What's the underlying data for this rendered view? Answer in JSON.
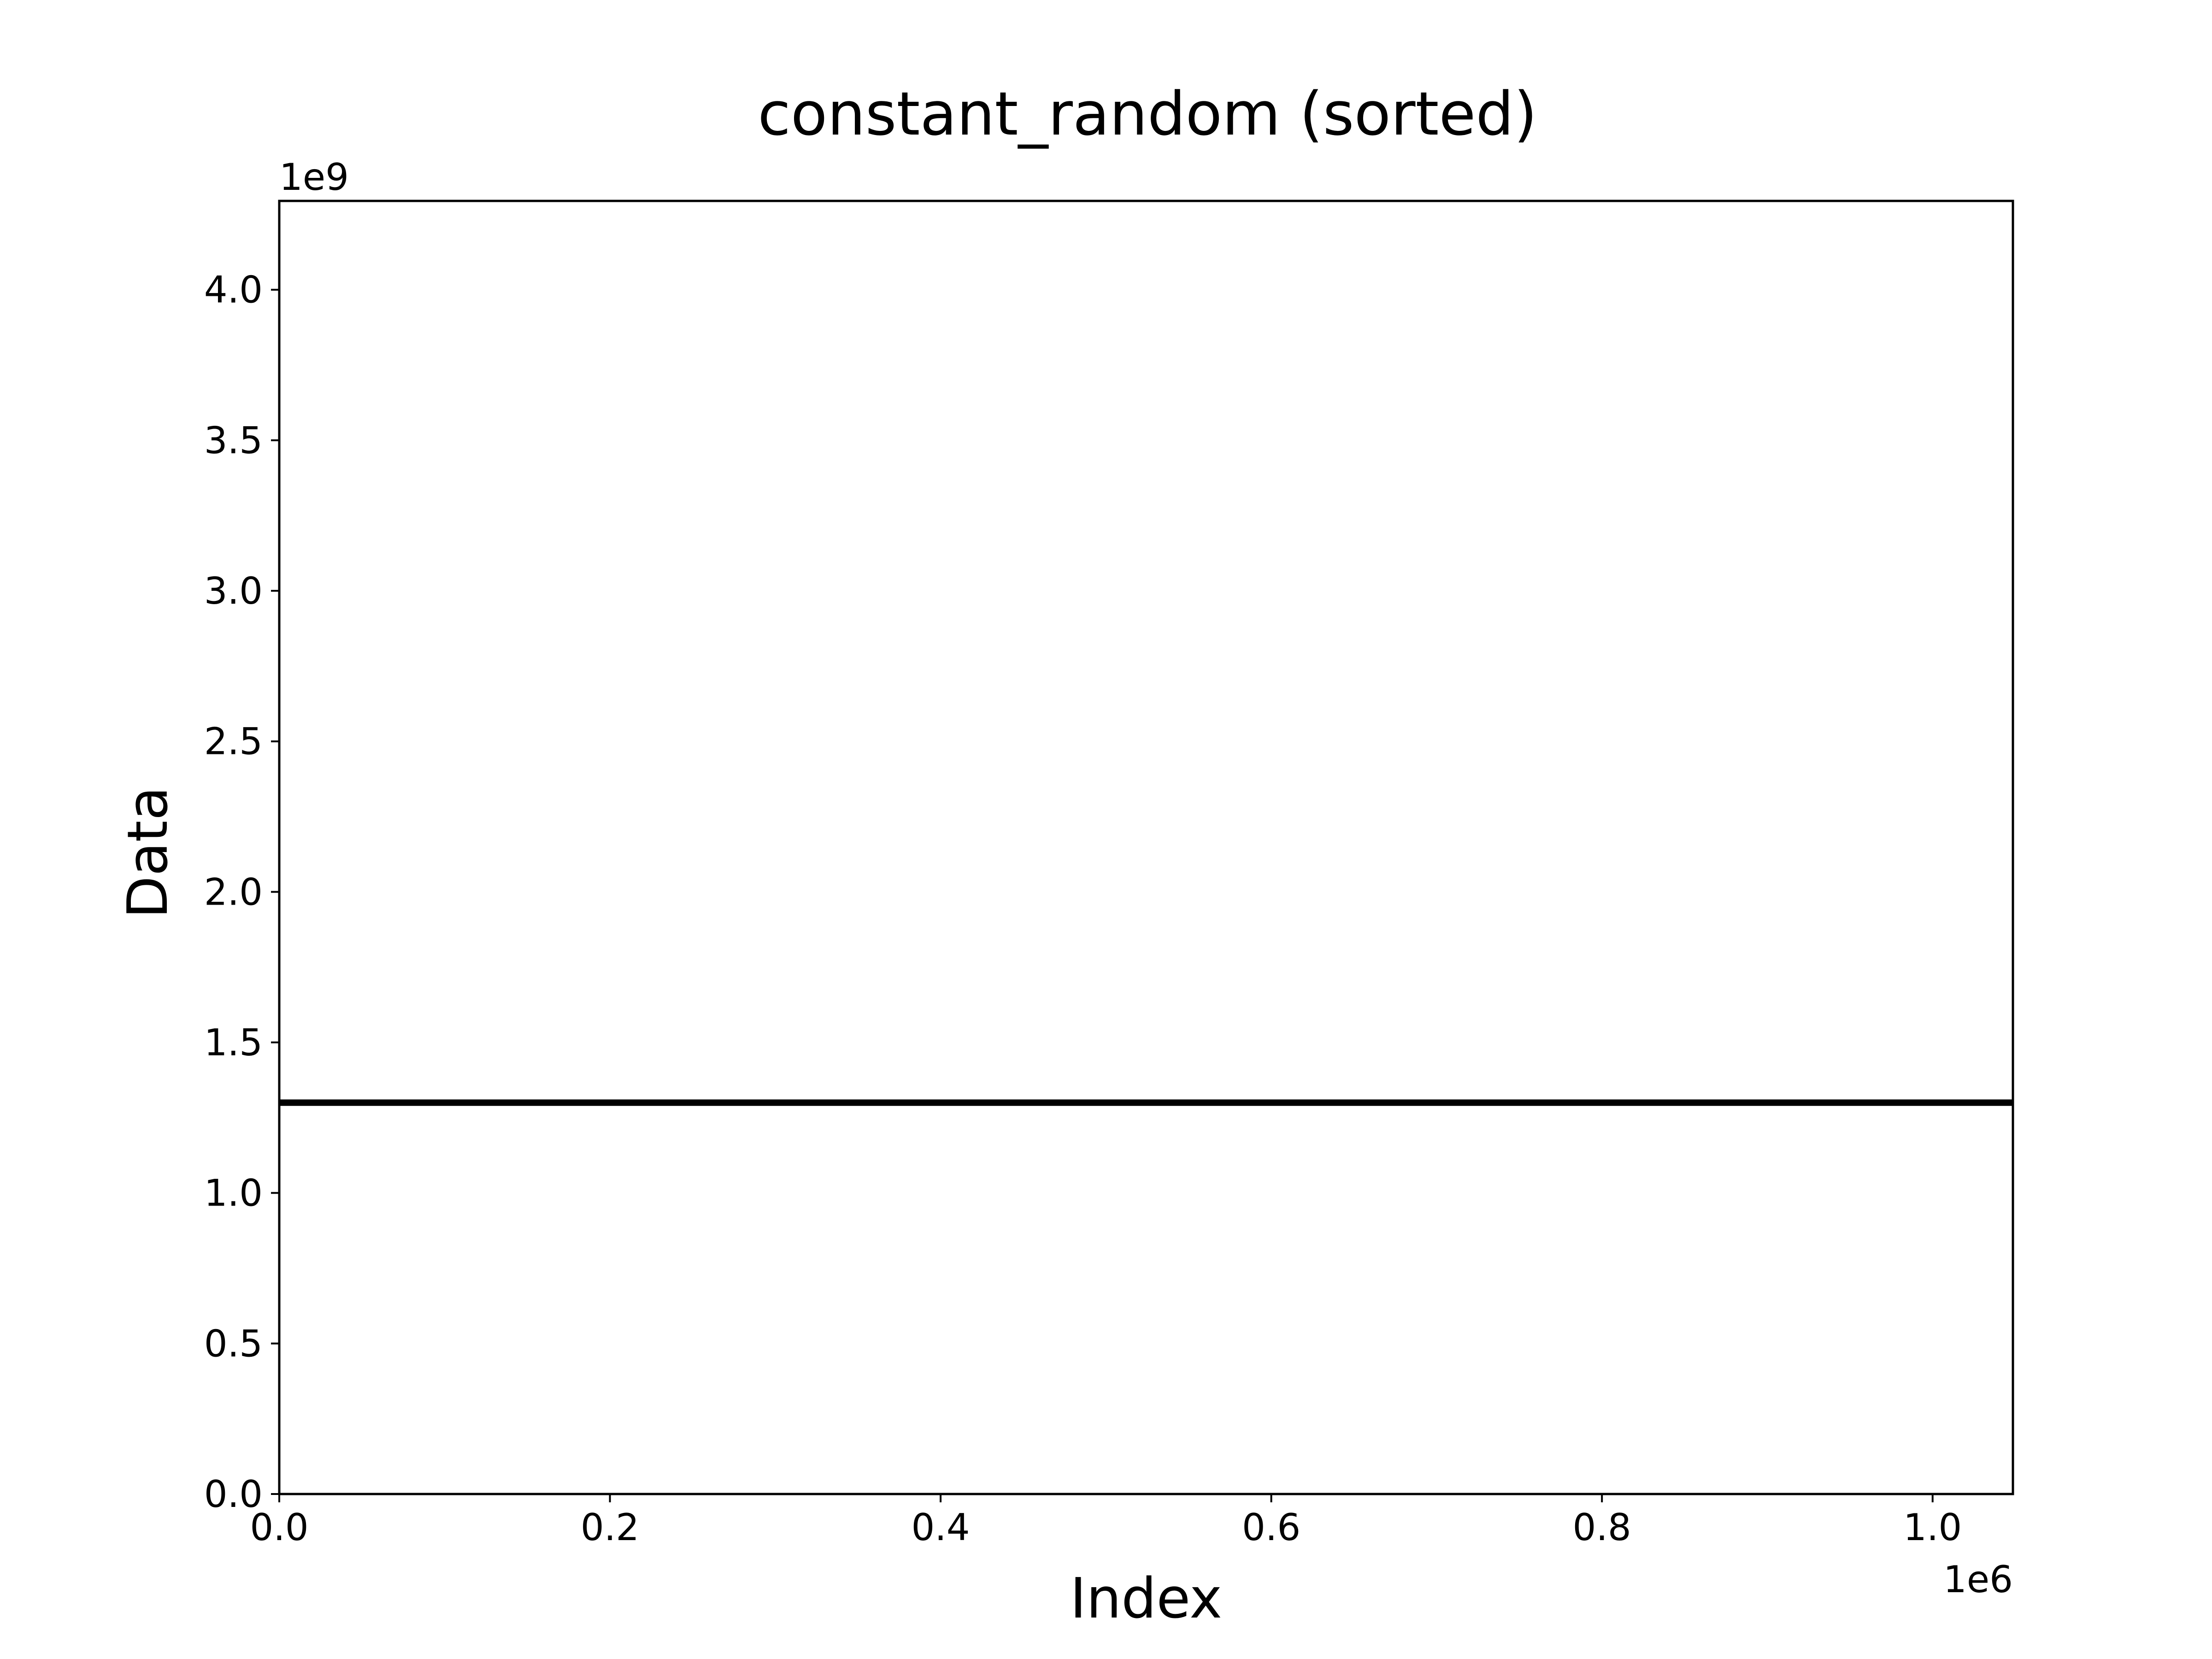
{
  "chart_data": {
    "type": "line",
    "title": "constant_random (sorted)",
    "xlabel": "Index",
    "ylabel": "Data",
    "x_offset_label": "1e6",
    "y_offset_label": "1e9",
    "xlim": [
      0,
      1.048576
    ],
    "ylim": [
      0,
      4.294967296
    ],
    "x_ticks": [
      0.0,
      0.2,
      0.4,
      0.6,
      0.8,
      1.0
    ],
    "x_tick_labels": [
      "0.0",
      "0.2",
      "0.4",
      "0.6",
      "0.8",
      "1.0"
    ],
    "y_ticks": [
      0.0,
      0.5,
      1.0,
      1.5,
      2.0,
      2.5,
      3.0,
      3.5,
      4.0
    ],
    "y_tick_labels": [
      "0.0",
      "0.5",
      "1.0",
      "1.5",
      "2.0",
      "2.5",
      "3.0",
      "3.5",
      "4.0"
    ],
    "grid": false,
    "legend": "none",
    "series": [
      {
        "x": [
          0,
          1.048576
        ],
        "y": [
          1.3,
          1.3
        ],
        "color": "#000000"
      }
    ]
  }
}
